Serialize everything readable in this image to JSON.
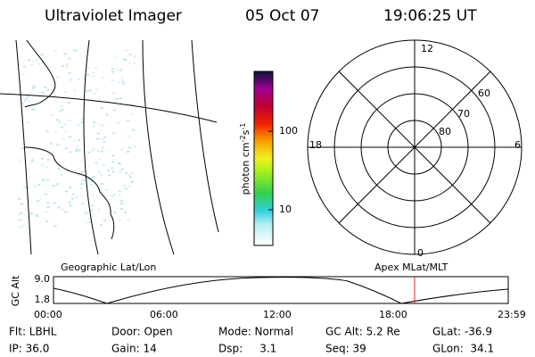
{
  "header": {
    "title": "Ultraviolet Imager",
    "date": "05 Oct 07",
    "time": "19:06:25 UT"
  },
  "colorbar": {
    "label": "photon cm",
    "exp1": "-2",
    "unit2": "s",
    "exp2": "-1",
    "ticks": [
      "100",
      "10"
    ]
  },
  "polar": {
    "labels": [
      "12",
      "60",
      "70",
      "80",
      "18",
      "6",
      "0"
    ]
  },
  "altitude": {
    "axis_label": "GC Alt",
    "yticks": [
      "9.0",
      "1.8"
    ],
    "left_title": "Geographic Lat/Lon",
    "right_title": "Apex MLat/MLT",
    "xticks": [
      "00:00",
      "06:00",
      "12:00",
      "18:00",
      "23:59"
    ]
  },
  "info": {
    "rows": [
      [
        "Flt: LBHL",
        "Door: Open",
        "Mode: Normal",
        "GC Alt: 5.2 Re",
        "GLat: -36.9"
      ],
      [
        "IP: 36.0",
        "Gain: 14",
        "Dsp:     3.1",
        "Seq: 39",
        "GLon:  34.1"
      ]
    ]
  }
}
